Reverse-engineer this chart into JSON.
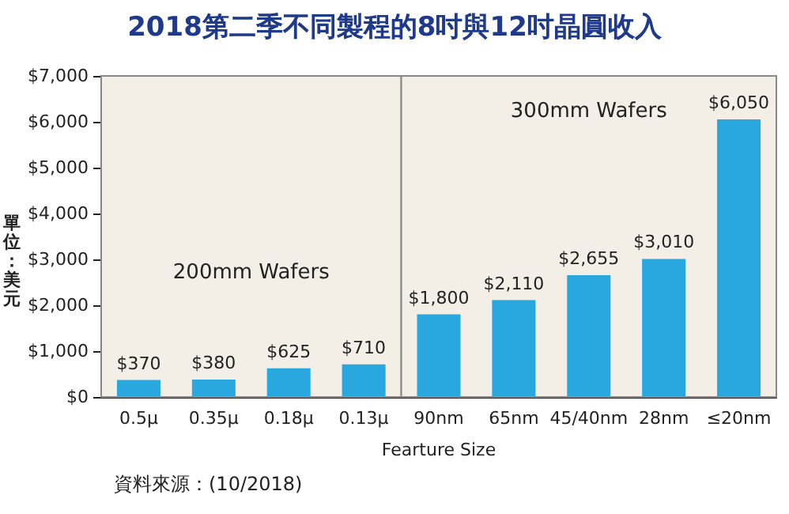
{
  "chart_data": {
    "type": "bar",
    "title": "2018第二季不同製程的8吋與12吋晶圓收入",
    "xlabel": "Fearture Size",
    "ylabel": "單位：美元",
    "categories": [
      "0.5μ",
      "0.35μ",
      "0.18μ",
      "0.13μ",
      "90nm",
      "65nm",
      "45/40nm",
      "28nm",
      "≤20nm"
    ],
    "series": [
      {
        "color": "#29a8e0",
        "values": [
          370,
          380,
          625,
          710,
          1800,
          2110,
          2655,
          3010,
          6050
        ],
        "value_labels": [
          "$370",
          "$380",
          "$625",
          "$710",
          "$1,800",
          "$2,110",
          "$2,655",
          "$3,010",
          "$6,050"
        ]
      }
    ],
    "ylim": [
      0,
      7000
    ],
    "yticks": [
      {
        "value": 0,
        "label": "$0"
      },
      {
        "value": 1000,
        "label": "$1,000"
      },
      {
        "value": 2000,
        "label": "$2,000"
      },
      {
        "value": 3000,
        "label": "$3,000"
      },
      {
        "value": 4000,
        "label": "$4,000"
      },
      {
        "value": 5000,
        "label": "$5,000"
      },
      {
        "value": 6000,
        "label": "$6,000"
      },
      {
        "value": 7000,
        "label": "$7,000"
      }
    ],
    "bands": [
      {
        "axis": "x",
        "from": "0.5μ",
        "to": "0.13μ",
        "label": "200mm Wafers",
        "color": "#f3efe6"
      },
      {
        "axis": "x",
        "from": "90nm",
        "to": "≤20nm",
        "label": "300mm Wafers",
        "color": "#f3efe6"
      }
    ],
    "annotations": [
      "資料來源：(10/2018)"
    ]
  }
}
